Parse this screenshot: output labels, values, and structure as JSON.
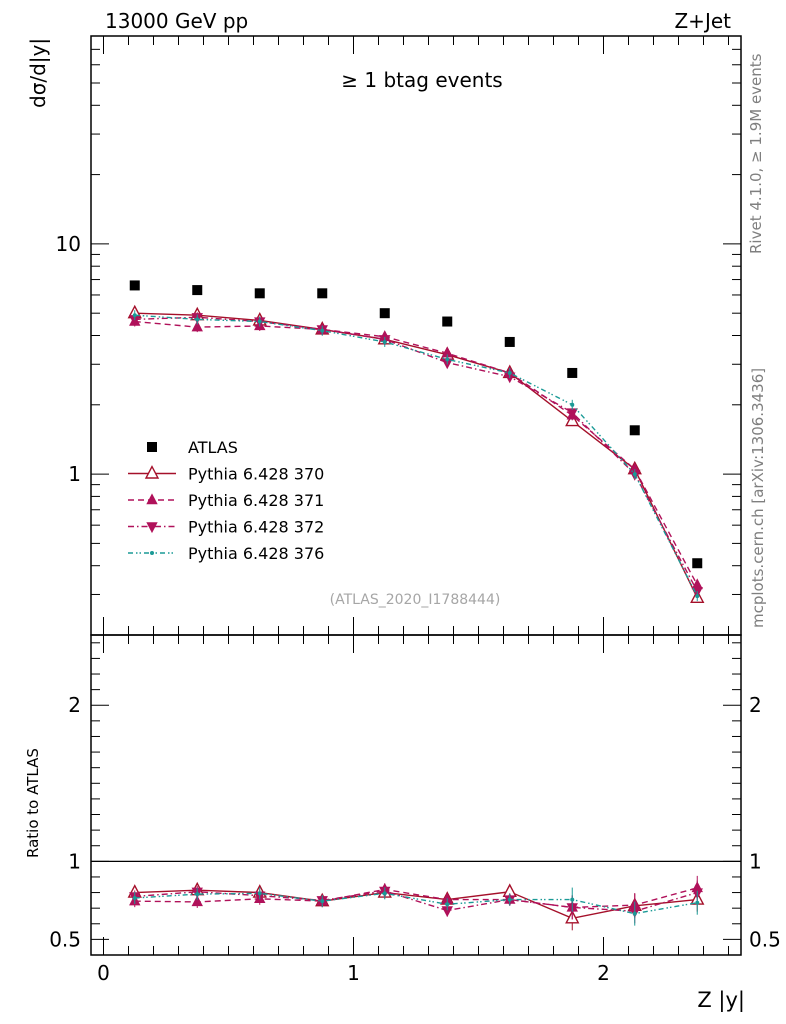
{
  "header": {
    "left": "13000 GeV pp",
    "right": "Z+Jet"
  },
  "side_texts": {
    "rivet": "Rivet 4.1.0, ≥ 1.9M events",
    "mcplots": "mcplots.cern.ch [arXiv:1306.3436]"
  },
  "chart_data": [
    {
      "type": "scatter",
      "title": "≥ 1 btag events",
      "ylabel": "dσ/d|y|",
      "xlabel": "Z |y|",
      "analysis_tag": "(ATLAS_2020_I1788444)",
      "yscale": "log",
      "ylim": [
        0.2,
        80
      ],
      "xlim": [
        -0.05,
        2.55
      ],
      "yticks": [
        {
          "v": 1,
          "label": "1"
        },
        {
          "v": 10,
          "label": "10"
        }
      ],
      "x": [
        0.125,
        0.375,
        0.625,
        0.875,
        1.125,
        1.375,
        1.625,
        1.875,
        2.125,
        2.375
      ],
      "series": [
        {
          "name": "ATLAS",
          "style": "data",
          "color": "#000000",
          "marker": "square",
          "values": [
            6.6,
            6.3,
            6.1,
            6.1,
            5.0,
            4.6,
            3.75,
            2.75,
            1.55,
            0.41
          ]
        },
        {
          "name": "Pythia 6.428 370",
          "style": "solid",
          "color": "#a5102a",
          "marker": "triangle-open",
          "values": [
            5.0,
            4.9,
            4.65,
            4.25,
            3.85,
            3.3,
            2.75,
            1.7,
            1.05,
            0.29
          ]
        },
        {
          "name": "Pythia 6.428 371",
          "style": "dashed",
          "color": "#b0115a",
          "marker": "triangle-up",
          "values": [
            4.6,
            4.35,
            4.4,
            4.25,
            3.95,
            3.35,
            2.75,
            1.8,
            1.05,
            0.33
          ]
        },
        {
          "name": "Pythia 6.428 372",
          "style": "dashdot",
          "color": "#b0115a",
          "marker": "triangle-down",
          "values": [
            4.7,
            4.8,
            4.6,
            4.25,
            3.85,
            3.05,
            2.65,
            1.85,
            1.0,
            0.31
          ]
        },
        {
          "name": "Pythia 6.428 376",
          "style": "dashdotdot",
          "color": "#1a9a96",
          "marker": "dot",
          "values": [
            4.9,
            4.7,
            4.6,
            4.2,
            3.75,
            3.15,
            2.75,
            2.0,
            1.0,
            0.295
          ]
        }
      ]
    },
    {
      "type": "line",
      "ylabel": "Ratio to ATLAS",
      "xlabel": "Z |y|",
      "ylim": [
        0.4,
        2.45
      ],
      "xlim": [
        -0.05,
        2.55
      ],
      "yticks": [
        {
          "v": 0.5,
          "label": "0.5"
        },
        {
          "v": 1,
          "label": "1"
        },
        {
          "v": 2,
          "label": "2"
        }
      ],
      "xticks": [
        {
          "v": 0,
          "label": "0"
        },
        {
          "v": 1,
          "label": "1"
        },
        {
          "v": 2,
          "label": "2"
        }
      ],
      "x": [
        0.125,
        0.375,
        0.625,
        0.875,
        1.125,
        1.375,
        1.625,
        1.875,
        2.125,
        2.375
      ],
      "series": [
        {
          "name": "Pythia 6.428 370",
          "style": "solid",
          "color": "#a5102a",
          "marker": "triangle-open",
          "values": [
            0.8,
            0.815,
            0.8,
            0.745,
            0.8,
            0.755,
            0.805,
            0.635,
            0.715,
            0.755
          ]
        },
        {
          "name": "Pythia 6.428 371",
          "style": "dashed",
          "color": "#b0115a",
          "marker": "triangle-up",
          "values": [
            0.745,
            0.74,
            0.76,
            0.745,
            0.82,
            0.755,
            0.755,
            0.705,
            0.72,
            0.83
          ]
        },
        {
          "name": "Pythia 6.428 372",
          "style": "dashdot",
          "color": "#b0115a",
          "marker": "triangle-down",
          "values": [
            0.775,
            0.805,
            0.78,
            0.75,
            0.81,
            0.685,
            0.755,
            0.705,
            0.68,
            0.8
          ]
        },
        {
          "name": "Pythia 6.428 376",
          "style": "dashdotdot",
          "color": "#1a9a96",
          "marker": "dot",
          "values": [
            0.765,
            0.79,
            0.795,
            0.745,
            0.795,
            0.725,
            0.755,
            0.755,
            0.665,
            0.735
          ]
        }
      ]
    }
  ]
}
